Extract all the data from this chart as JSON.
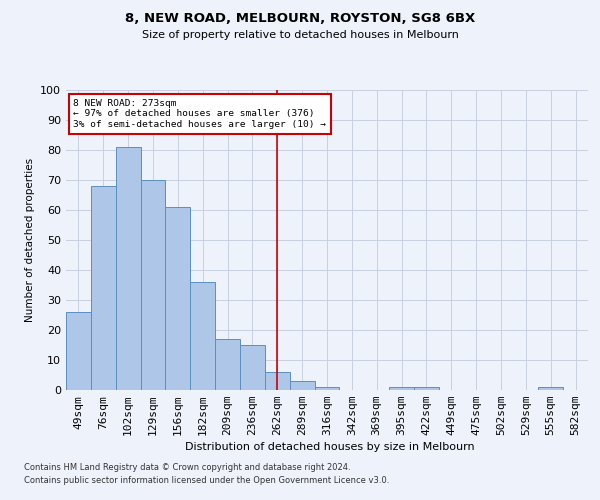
{
  "title": "8, NEW ROAD, MELBOURN, ROYSTON, SG8 6BX",
  "subtitle": "Size of property relative to detached houses in Melbourn",
  "xlabel": "Distribution of detached houses by size in Melbourn",
  "ylabel": "Number of detached properties",
  "categories": [
    "49sqm",
    "76sqm",
    "102sqm",
    "129sqm",
    "156sqm",
    "182sqm",
    "209sqm",
    "236sqm",
    "262sqm",
    "289sqm",
    "316sqm",
    "342sqm",
    "369sqm",
    "395sqm",
    "422sqm",
    "449sqm",
    "475sqm",
    "502sqm",
    "529sqm",
    "555sqm",
    "582sqm"
  ],
  "values": [
    26,
    68,
    81,
    70,
    61,
    36,
    17,
    15,
    6,
    3,
    1,
    0,
    0,
    1,
    1,
    0,
    0,
    0,
    0,
    1,
    0
  ],
  "bar_color": "#aec6e8",
  "bar_edge_color": "#5a8fc2",
  "grid_color": "#c8d0e0",
  "bg_color": "#eef2fb",
  "annotation_text": "8 NEW ROAD: 273sqm\n← 97% of detached houses are smaller (376)\n3% of semi-detached houses are larger (10) →",
  "annotation_box_color": "#ffffff",
  "annotation_box_edge": "#cc0000",
  "vline_x_idx": 8,
  "vline_color": "#cc0000",
  "ylim": [
    0,
    100
  ],
  "footer1": "Contains HM Land Registry data © Crown copyright and database right 2024.",
  "footer2": "Contains public sector information licensed under the Open Government Licence v3.0."
}
